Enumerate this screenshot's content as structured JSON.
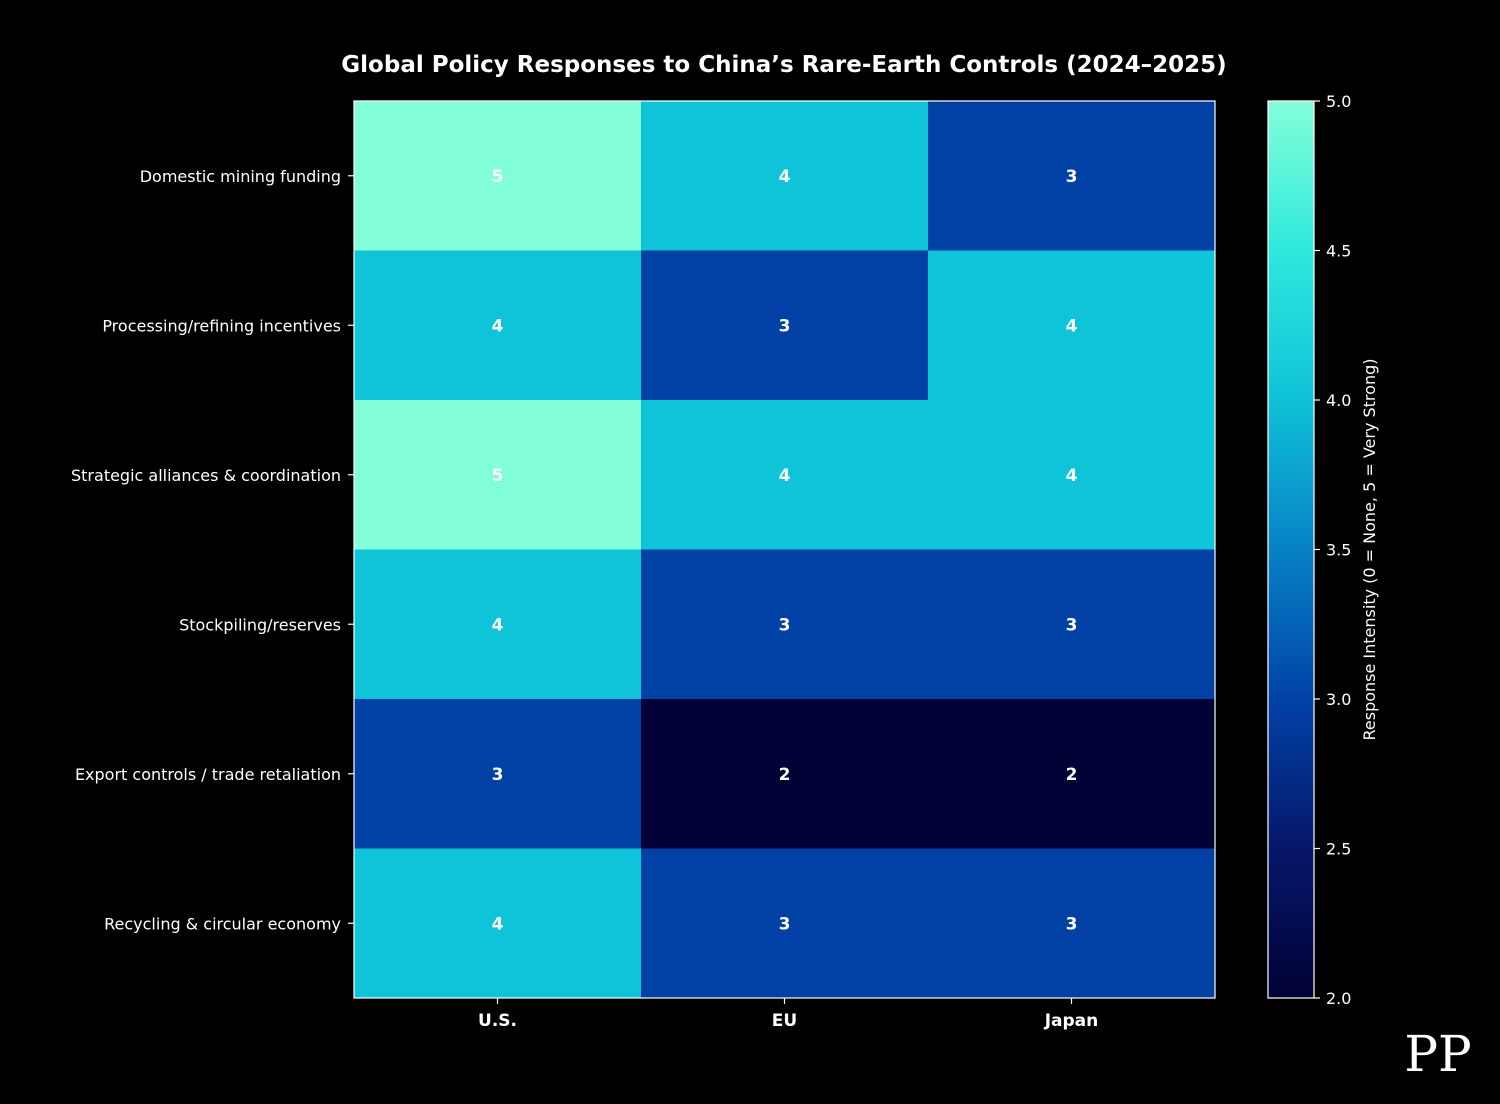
{
  "chart_data": {
    "type": "heatmap",
    "title": "Global Policy Responses to China’s Rare-Earth Controls (2024–2025)",
    "rows": [
      "Domestic mining funding",
      "Processing/refining incentives",
      "Strategic alliances & coordination",
      "Stockpiling/reserves",
      "Export controls / trade retaliation",
      "Recycling & circular economy"
    ],
    "columns": [
      "U.S.",
      "EU",
      "Japan"
    ],
    "values": [
      [
        5,
        4,
        3
      ],
      [
        4,
        3,
        4
      ],
      [
        5,
        4,
        4
      ],
      [
        4,
        3,
        3
      ],
      [
        3,
        2,
        2
      ],
      [
        4,
        3,
        3
      ]
    ],
    "colorbar": {
      "label": "Response Intensity (0 = None, 5 = Very Strong)",
      "range": [
        2.0,
        5.0
      ],
      "ticks": [
        "2.0",
        "2.5",
        "3.0",
        "3.5",
        "4.0",
        "4.5",
        "5.0"
      ],
      "colormap": "GnBu (reversed, dark)"
    },
    "colors": {
      "2": "#010135",
      "3": "#0141a6",
      "4": "#0fc3d8",
      "5": "#82ffd9"
    }
  },
  "logo_text": "PP"
}
